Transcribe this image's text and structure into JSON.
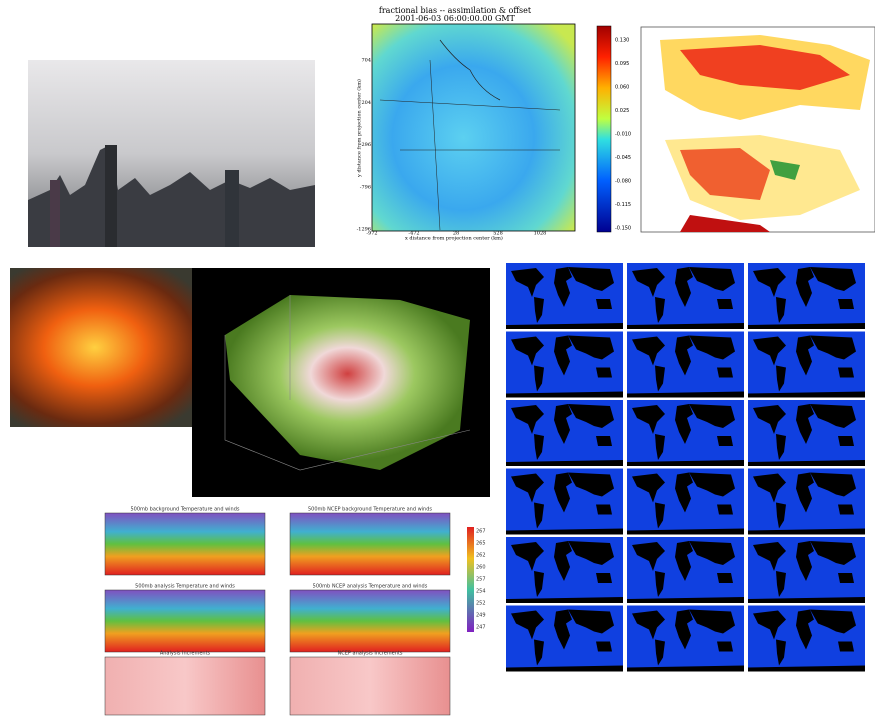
{
  "panels": {
    "bias_plot": {
      "title": "fractional bias -- assimilation & offset",
      "subtitle": "2001-06-03 06:00:00.00 GMT",
      "x_label": "x distance from projection center (km)",
      "y_label": "y distance from projection center (km)",
      "x_ticks": [
        "-972",
        "-472",
        "28",
        "528",
        "1028"
      ],
      "y_ticks": [
        "704",
        "204",
        "-296",
        "-796",
        "-1296"
      ],
      "colorbar_ticks": [
        "0.130",
        "0.095",
        "0.060",
        "0.025",
        "-0.010",
        "-0.045",
        "-0.080",
        "-0.115",
        "-0.150"
      ]
    },
    "analysis_plots": {
      "titles": [
        "500mb background Temperature and winds",
        "500mb NCEP background Temperature and winds",
        "500mb analysis Temperature and winds",
        "500mb NCEP analysis Temperature and winds",
        "Analysis Increments",
        "NCEP analysis Increments"
      ],
      "colorbar_ticks": [
        "267",
        "265",
        "262",
        "260",
        "257",
        "254",
        "252",
        "249",
        "247"
      ]
    }
  }
}
